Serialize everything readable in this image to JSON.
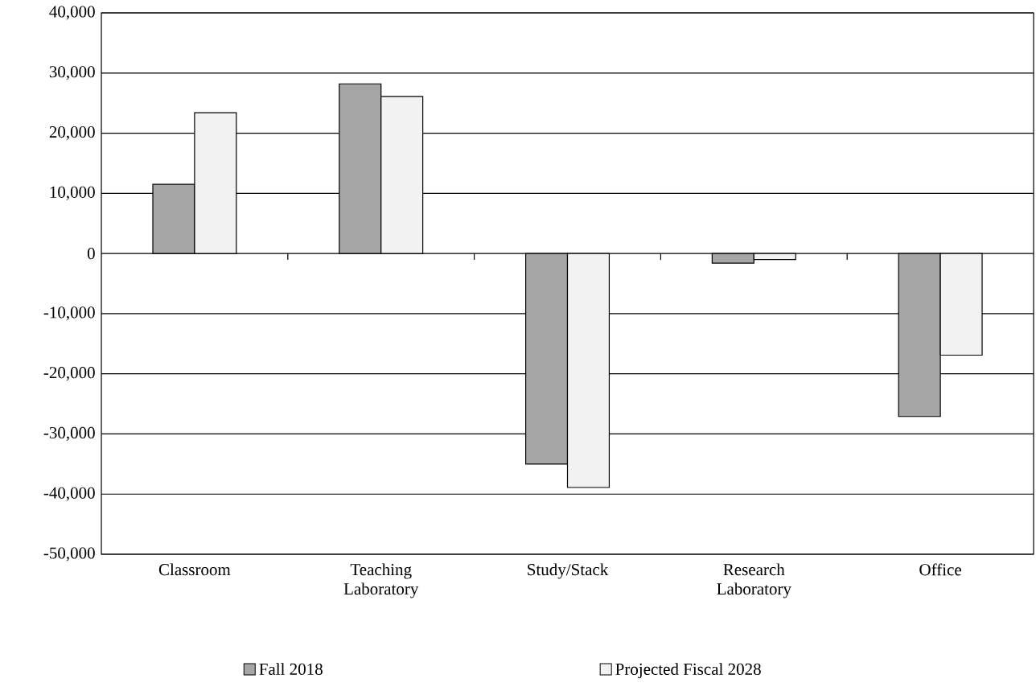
{
  "chart_data": {
    "type": "bar",
    "categories": [
      "Classroom",
      "Teaching Laboratory",
      "Study/Stack",
      "Research Laboratory",
      "Office"
    ],
    "series": [
      {
        "name": "Fall 2018",
        "color": "#a6a6a6",
        "values": [
          11500,
          28200,
          -35000,
          -1600,
          -27100
        ]
      },
      {
        "name": "Projected Fiscal 2028",
        "color": "#f2f2f2",
        "values": [
          23400,
          26100,
          -38900,
          -1000,
          -16900
        ]
      }
    ],
    "ylim": [
      -50000,
      40000
    ],
    "yticks": [
      {
        "value": -50000,
        "label": "-50,000"
      },
      {
        "value": -40000,
        "label": "-40,000"
      },
      {
        "value": -30000,
        "label": "-30,000"
      },
      {
        "value": -20000,
        "label": "-20,000"
      },
      {
        "value": -10000,
        "label": "-10,000"
      },
      0,
      {
        "value": 10000,
        "label": "10,000"
      },
      {
        "value": 20000,
        "label": "20,000"
      },
      {
        "value": 30000,
        "label": "30,000"
      },
      {
        "value": 40000,
        "label": "40,000"
      }
    ],
    "grid": "y",
    "legend": "bottom"
  }
}
